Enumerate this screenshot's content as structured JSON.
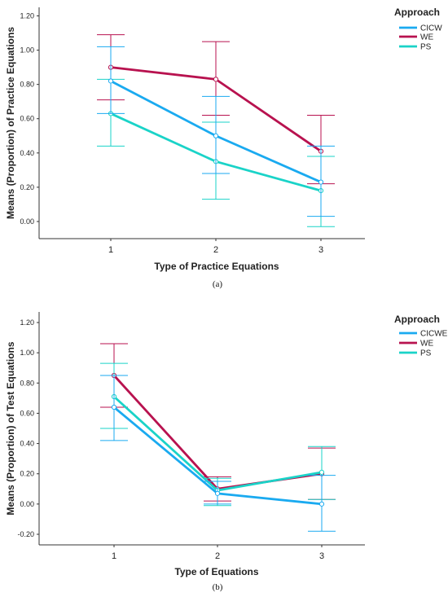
{
  "chart_data": [
    {
      "type": "line",
      "panel_label": "(a)",
      "xlabel": "Type of Practice Equations",
      "ylabel": "Means (Proportion) of Practice Equations",
      "categories": [
        "1",
        "2",
        "3"
      ],
      "yticks": [
        "0.00",
        "0.20",
        "0.40",
        "0.60",
        "0.80",
        "1.00",
        "1.20"
      ],
      "ylim": [
        -0.1,
        1.25
      ],
      "legend_title": "Approach",
      "legend_position": "top-right",
      "series": [
        {
          "name": "CICW",
          "color": "#1aaaf0",
          "values": [
            0.82,
            0.5,
            0.23
          ],
          "err_low": [
            0.63,
            0.28,
            0.03
          ],
          "err_high": [
            1.02,
            0.73,
            0.44
          ]
        },
        {
          "name": "WE",
          "color": "#b8124f",
          "values": [
            0.9,
            0.83,
            0.41
          ],
          "err_low": [
            0.71,
            0.62,
            0.22
          ],
          "err_high": [
            1.09,
            1.05,
            0.62
          ]
        },
        {
          "name": "PS",
          "color": "#1ad3c8",
          "values": [
            0.63,
            0.35,
            0.18
          ],
          "err_low": [
            0.44,
            0.13,
            -0.03
          ],
          "err_high": [
            0.83,
            0.58,
            0.38
          ]
        }
      ]
    },
    {
      "type": "line",
      "panel_label": "(b)",
      "xlabel": "Type of Equations",
      "ylabel": "Means (Proportion) of Test Equations",
      "categories": [
        "1",
        "2",
        "3"
      ],
      "yticks": [
        "-0.20",
        "0.00",
        "0.20",
        "0.40",
        "0.60",
        "0.80",
        "1.00",
        "1.20"
      ],
      "ylim": [
        -0.27,
        1.27
      ],
      "legend_title": "Approach",
      "legend_position": "top-right",
      "series": [
        {
          "name": "CICWE",
          "color": "#1aaaf0",
          "values": [
            0.64,
            0.07,
            0.0
          ],
          "err_low": [
            0.42,
            0.0,
            -0.18
          ],
          "err_high": [
            0.85,
            0.15,
            0.19
          ]
        },
        {
          "name": "WE",
          "color": "#b8124f",
          "values": [
            0.85,
            0.1,
            0.2
          ],
          "err_low": [
            0.64,
            0.02,
            0.03
          ],
          "err_high": [
            1.06,
            0.18,
            0.37
          ]
        },
        {
          "name": "PS",
          "color": "#1ad3c8",
          "values": [
            0.71,
            0.09,
            0.21
          ],
          "err_low": [
            0.5,
            -0.01,
            0.03
          ],
          "err_high": [
            0.93,
            0.17,
            0.38
          ]
        }
      ]
    }
  ]
}
